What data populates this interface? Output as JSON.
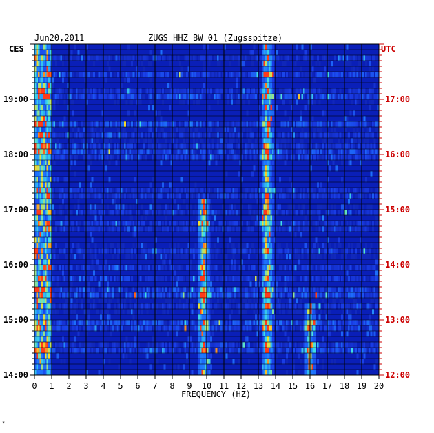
{
  "header": {
    "date": "Jun20,2011",
    "station": "ZUGS HHZ BW 01 (Zugsspitze)"
  },
  "corner_mark": "*",
  "chart_data": {
    "type": "heatmap",
    "title": "ZUGS HHZ BW 01 (Zugsspitze)",
    "date": "Jun20,2011",
    "xlabel": "FREQUENCY (HZ)",
    "x_ticks": [
      "0",
      "1",
      "2",
      "3",
      "4",
      "5",
      "6",
      "7",
      "8",
      "9",
      "10",
      "11",
      "12",
      "13",
      "14",
      "15",
      "16",
      "17",
      "18",
      "19",
      "20"
    ],
    "xlim": [
      0,
      20
    ],
    "left_axis": {
      "label": "CES",
      "ticks": [
        "19:00",
        "18:00",
        "17:00",
        "16:00",
        "15:00",
        "14:00"
      ],
      "range": [
        "14:00",
        "20:00"
      ]
    },
    "right_axis": {
      "label": "UTC",
      "ticks": [
        "17:00",
        "16:00",
        "15:00",
        "14:00",
        "13:00",
        "12:00"
      ],
      "range": [
        "12:00",
        "18:00"
      ]
    },
    "grid": true,
    "colors": {
      "background": "#0a1fb8",
      "low": "#0b1a9e",
      "mid": "#1e78ff",
      "high": "#3fe0e8",
      "peak": "#f2e030",
      "max": "#ff3a1a",
      "utc_text": "#cc0000"
    },
    "features": [
      {
        "name": "persistent line",
        "frequency_hz": 13.5,
        "time_range_ces": [
          "14:00",
          "20:00"
        ]
      },
      {
        "name": "band",
        "frequency_hz": 9.8,
        "time_range_ces": [
          "14:00",
          "17:10"
        ]
      },
      {
        "name": "line",
        "frequency_hz": 16.0,
        "time_range_ces": [
          "14:05",
          "15:15"
        ]
      },
      {
        "name": "low-frequency energy",
        "frequency_range_hz": [
          0,
          1
        ],
        "time_range_ces": [
          "14:00",
          "20:00"
        ]
      }
    ]
  }
}
